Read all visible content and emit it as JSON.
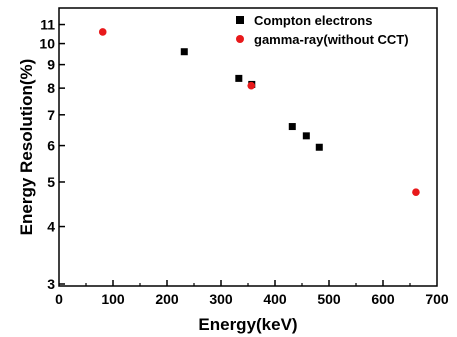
{
  "chart_data": {
    "type": "scatter",
    "xlabel": "Energy(keV)",
    "ylabel": "Energy Resolution(%)",
    "xlim": [
      0,
      700
    ],
    "ylim": [
      3,
      12
    ],
    "y_scale": "log",
    "x_ticks": [
      "0",
      "100",
      "200",
      "300",
      "400",
      "500",
      "600",
      "700"
    ],
    "y_ticks": [
      "3",
      "4",
      "5",
      "6",
      "7",
      "8",
      "9",
      "10",
      "11"
    ],
    "grid": false,
    "legend_position": "top-right",
    "series": [
      {
        "name": "Compton electrons",
        "marker": "square",
        "color": "#000000",
        "points": [
          {
            "x": 232,
            "y": 9.6
          },
          {
            "x": 333,
            "y": 8.4
          },
          {
            "x": 357,
            "y": 8.15
          },
          {
            "x": 432,
            "y": 6.6
          },
          {
            "x": 458,
            "y": 6.3
          },
          {
            "x": 482,
            "y": 5.95
          }
        ]
      },
      {
        "name": "gamma-ray(without CCT)",
        "marker": "circle",
        "color": "#e8191b",
        "points": [
          {
            "x": 81,
            "y": 10.6
          },
          {
            "x": 356,
            "y": 8.1
          },
          {
            "x": 661,
            "y": 4.75
          }
        ]
      }
    ]
  }
}
